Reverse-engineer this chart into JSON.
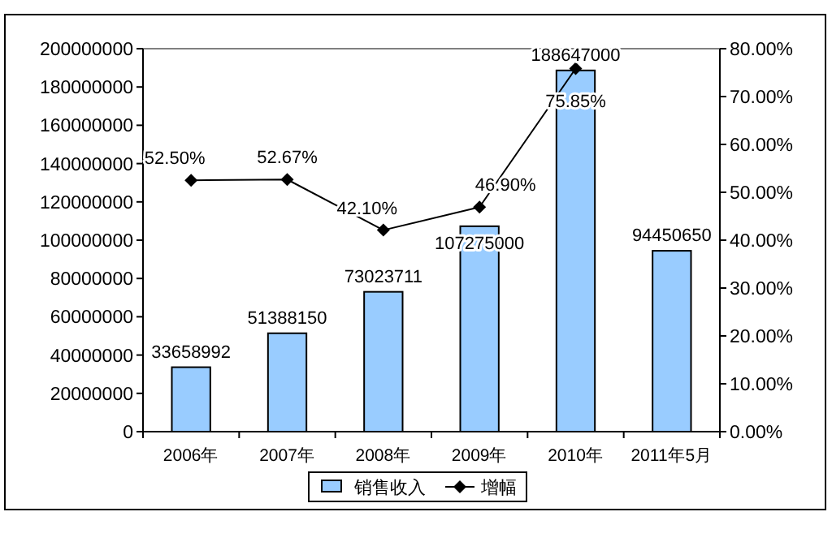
{
  "chart_data": {
    "type": "bar",
    "categories": [
      "2006年",
      "2007年",
      "2008年",
      "2009年",
      "2010年",
      "2011年5月"
    ],
    "series": [
      {
        "name": "销售收入",
        "color": "#99ccff",
        "values": [
          33658992,
          51388150,
          73023711,
          107275000,
          188647000,
          94450650
        ],
        "value_labels": [
          "33658992",
          "51388150",
          "73023711",
          "107275000",
          "188647000",
          "94450650"
        ]
      },
      {
        "name": "增幅",
        "type": "line",
        "axis": "y2",
        "color": "#000000",
        "marker": "diamond",
        "values": [
          52.5,
          52.67,
          42.1,
          46.9,
          75.85,
          null
        ],
        "value_labels": [
          "52.50%",
          "52.67%",
          "42.10%",
          "46.90%",
          "75.85%",
          null
        ]
      }
    ],
    "ylim": [
      0,
      200000000
    ],
    "yticks": [
      0,
      20000000,
      40000000,
      60000000,
      80000000,
      100000000,
      120000000,
      140000000,
      160000000,
      180000000,
      200000000
    ],
    "y2lim": [
      0,
      80
    ],
    "y2ticks": [
      {
        "value": 0,
        "label": "0.00%"
      },
      {
        "value": 10,
        "label": "10.00%"
      },
      {
        "value": 20,
        "label": "20.00%"
      },
      {
        "value": 30,
        "label": "30.00%"
      },
      {
        "value": 40,
        "label": "40.00%"
      },
      {
        "value": 50,
        "label": "50.00%"
      },
      {
        "value": 60,
        "label": "60.00%"
      },
      {
        "value": 70,
        "label": "70.00%"
      },
      {
        "value": 80,
        "label": "80.00%"
      }
    ],
    "legend": "bottom",
    "grid": false
  }
}
